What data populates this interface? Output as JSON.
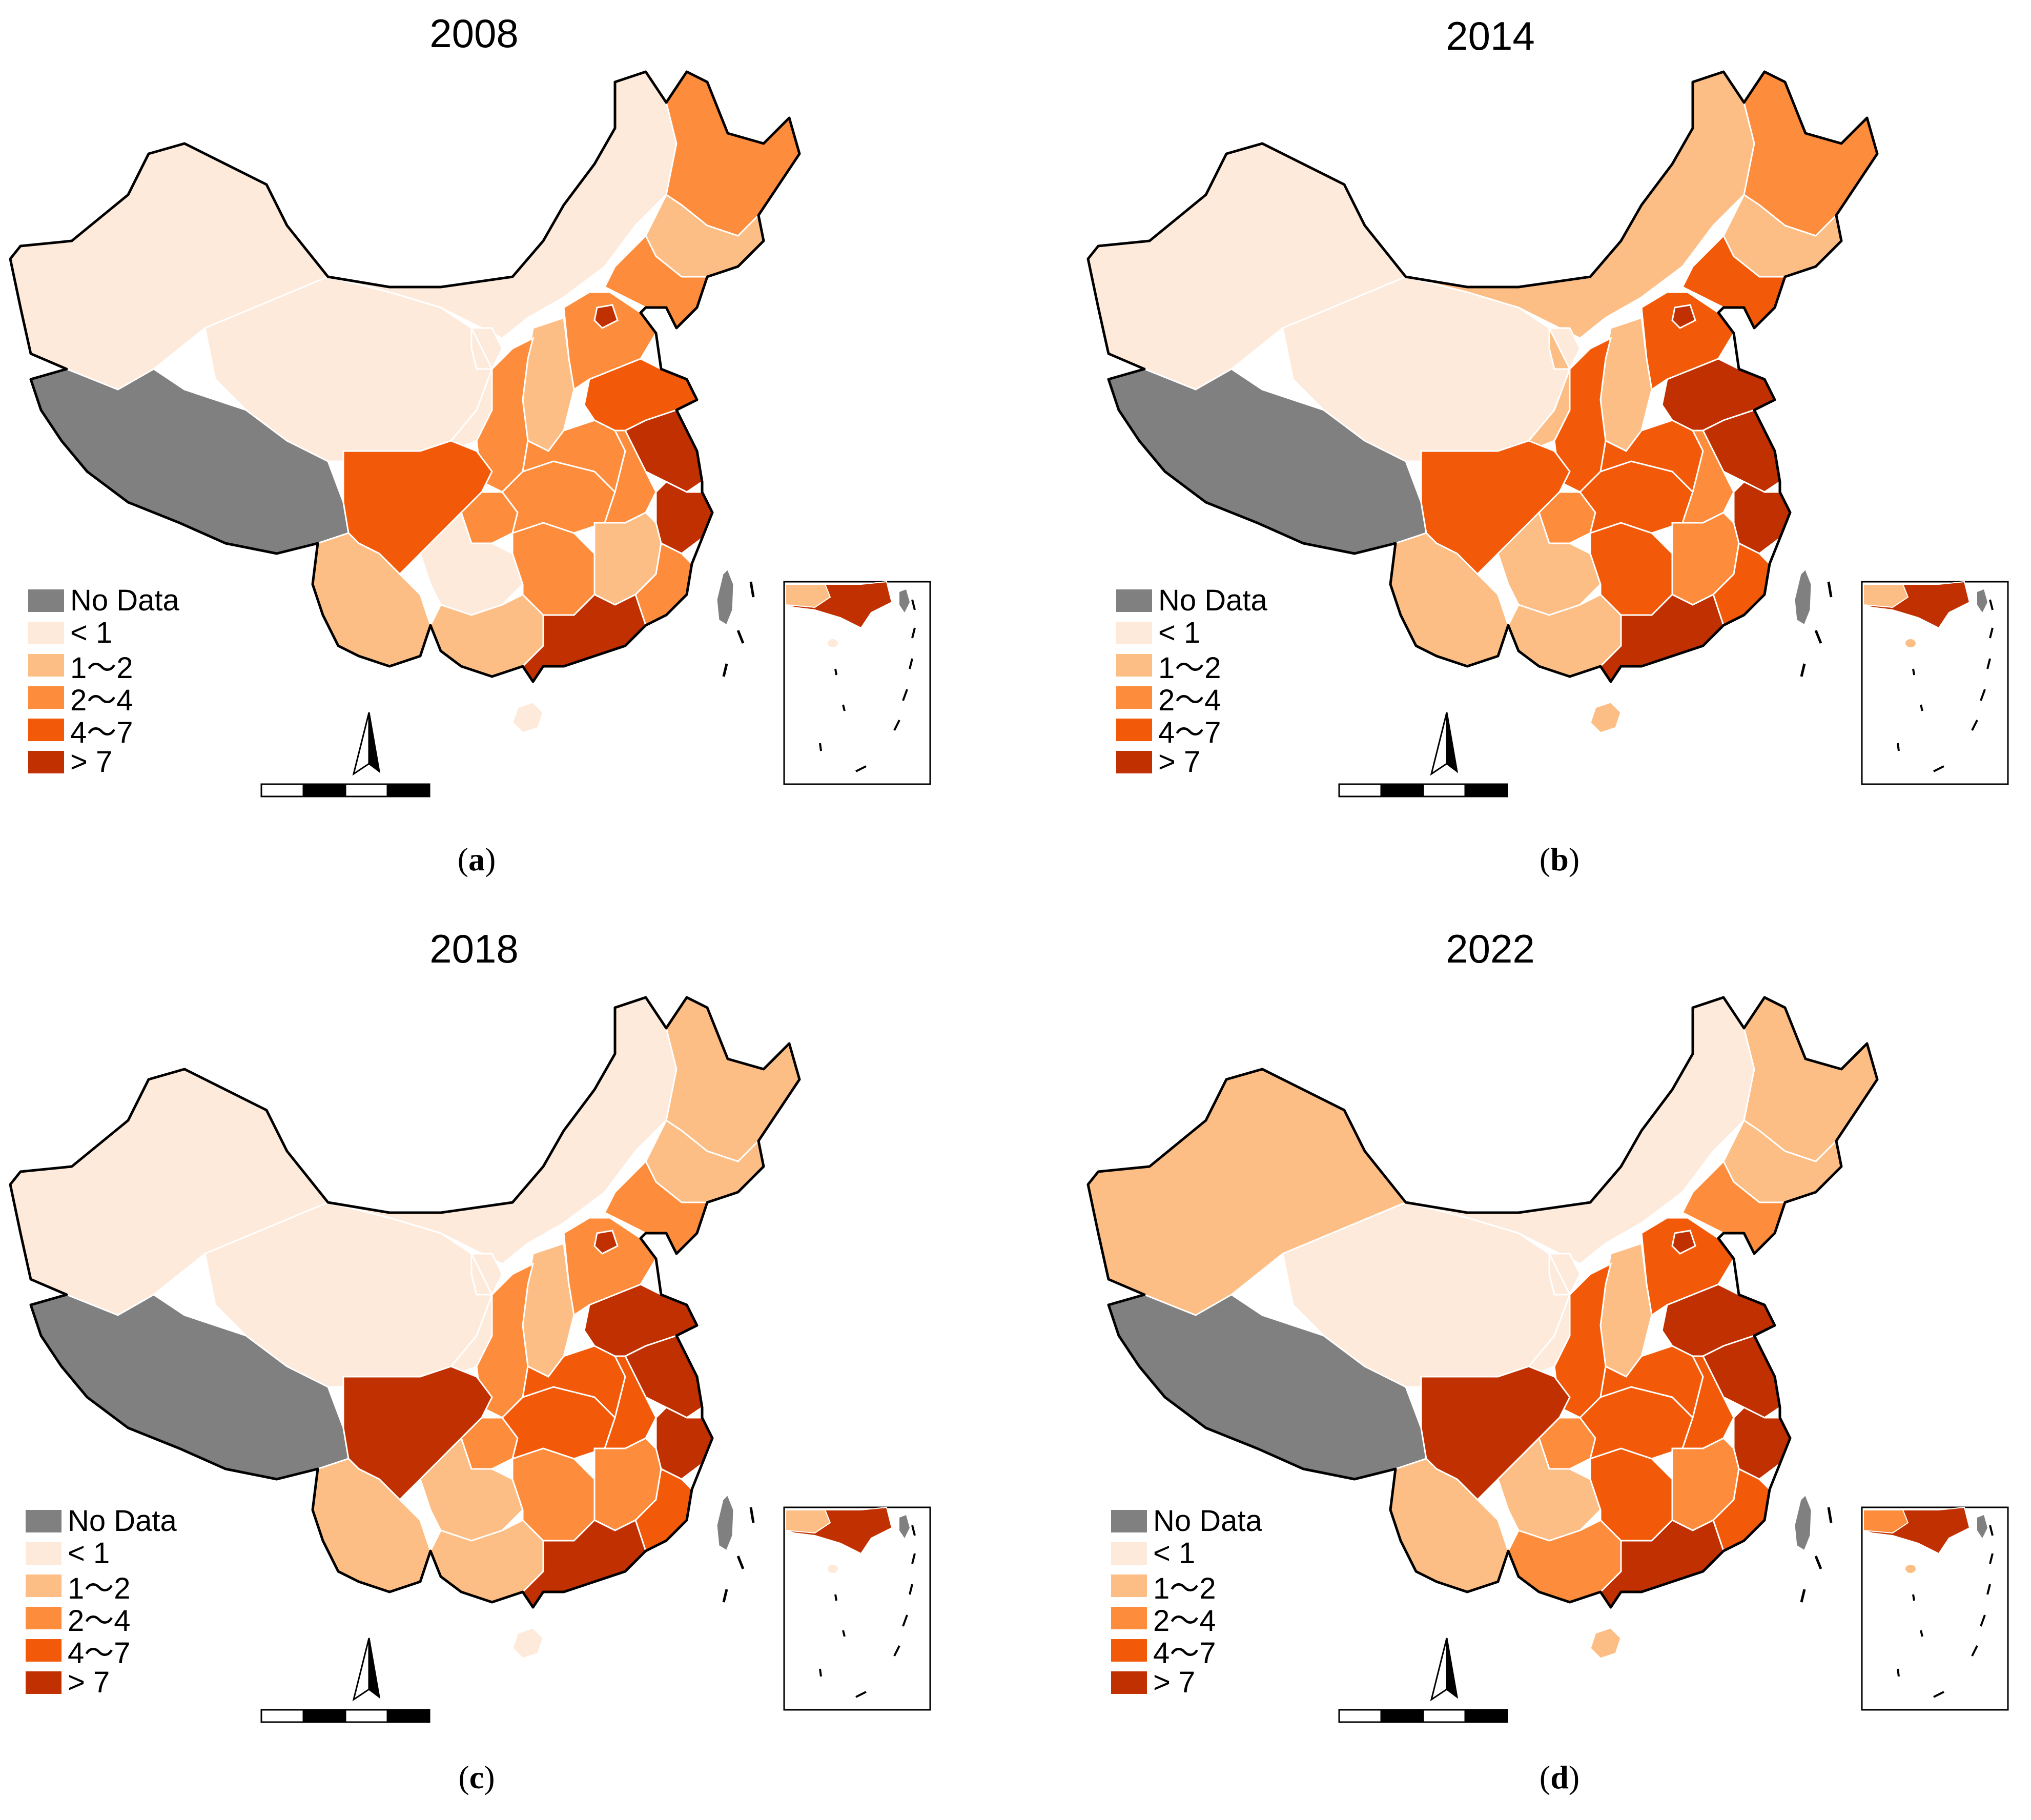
{
  "colors": {
    "no_data": "#808080",
    "lt1": "#fdeadb",
    "c1_2": "#fdbe85",
    "c2_4": "#fd8d3c",
    "c4_7": "#f25a0a",
    "gt7": "#c03000",
    "border": "#000000",
    "province_line": "#ffffff"
  },
  "legend": [
    {
      "label": "No Data",
      "color_key": "no_data"
    },
    {
      "label": "< 1",
      "color_key": "lt1"
    },
    {
      "label": "1～2",
      "color_key": "c1_2"
    },
    {
      "label": "2～4",
      "color_key": "c2_4"
    },
    {
      "label": "4～7",
      "color_key": "c4_7"
    },
    {
      "label": "> 7",
      "color_key": "gt7"
    }
  ],
  "panels": [
    {
      "title": "2008",
      "caption_letter": "a",
      "regions": {
        "xinjiang": "lt1",
        "tibet": "no_data",
        "qinghai": "lt1",
        "gansu": "lt1",
        "inner_mongolia": "lt1",
        "heilongjiang": "c2_4",
        "jilin": "c1_2",
        "liaoning": "c2_4",
        "beijing": "gt7",
        "hebei": "c2_4",
        "shanxi": "c1_2",
        "shaanxi": "c2_4",
        "ningxia": "lt1",
        "sichuan": "c4_7",
        "yunnan": "c1_2",
        "guizhou": "lt1",
        "chongqing": "c2_4",
        "hubei": "c2_4",
        "hunan": "c2_4",
        "henan": "c2_4",
        "shandong": "c4_7",
        "jiangsu": "gt7",
        "anhui": "c2_4",
        "zhejiang": "gt7",
        "jiangxi": "c1_2",
        "fujian": "c2_4",
        "guangdong": "gt7",
        "guangxi": "c1_2",
        "hainan": "lt1",
        "taiwan": "no_data"
      }
    },
    {
      "title": "2014",
      "caption_letter": "b",
      "regions": {
        "xinjiang": "lt1",
        "tibet": "no_data",
        "qinghai": "lt1",
        "gansu": "c1_2",
        "inner_mongolia": "c1_2",
        "heilongjiang": "c2_4",
        "jilin": "c1_2",
        "liaoning": "c4_7",
        "beijing": "gt7",
        "hebei": "c4_7",
        "shanxi": "c1_2",
        "shaanxi": "c4_7",
        "ningxia": "lt1",
        "sichuan": "c4_7",
        "yunnan": "c1_2",
        "guizhou": "c1_2",
        "chongqing": "c2_4",
        "hubei": "c4_7",
        "hunan": "c4_7",
        "henan": "c4_7",
        "shandong": "gt7",
        "jiangsu": "gt7",
        "anhui": "c2_4",
        "zhejiang": "gt7",
        "jiangxi": "c2_4",
        "fujian": "c4_7",
        "guangdong": "gt7",
        "guangxi": "c1_2",
        "hainan": "c1_2",
        "taiwan": "no_data"
      }
    },
    {
      "title": "2018",
      "caption_letter": "c",
      "regions": {
        "xinjiang": "lt1",
        "tibet": "no_data",
        "qinghai": "lt1",
        "gansu": "lt1",
        "inner_mongolia": "lt1",
        "heilongjiang": "c1_2",
        "jilin": "c1_2",
        "liaoning": "c2_4",
        "beijing": "gt7",
        "hebei": "c2_4",
        "shanxi": "c1_2",
        "shaanxi": "c2_4",
        "ningxia": "lt1",
        "sichuan": "gt7",
        "yunnan": "c1_2",
        "guizhou": "c1_2",
        "chongqing": "c2_4",
        "hubei": "c4_7",
        "hunan": "c2_4",
        "henan": "c4_7",
        "shandong": "gt7",
        "jiangsu": "gt7",
        "anhui": "c4_7",
        "zhejiang": "gt7",
        "jiangxi": "c2_4",
        "fujian": "c4_7",
        "guangdong": "gt7",
        "guangxi": "c1_2",
        "hainan": "lt1",
        "taiwan": "no_data"
      }
    },
    {
      "title": "2022",
      "caption_letter": "d",
      "regions": {
        "xinjiang": "c1_2",
        "tibet": "no_data",
        "qinghai": "lt1",
        "gansu": "lt1",
        "inner_mongolia": "lt1",
        "heilongjiang": "c1_2",
        "jilin": "c1_2",
        "liaoning": "c2_4",
        "beijing": "gt7",
        "hebei": "c4_7",
        "shanxi": "c1_2",
        "shaanxi": "c4_7",
        "ningxia": "lt1",
        "sichuan": "gt7",
        "yunnan": "c1_2",
        "guizhou": "c1_2",
        "chongqing": "c2_4",
        "hubei": "c4_7",
        "hunan": "c4_7",
        "henan": "c4_7",
        "shandong": "gt7",
        "jiangsu": "gt7",
        "anhui": "c4_7",
        "zhejiang": "gt7",
        "jiangxi": "c2_4",
        "fujian": "c4_7",
        "guangdong": "gt7",
        "guangxi": "c2_4",
        "hainan": "c1_2",
        "taiwan": "no_data"
      }
    }
  ]
}
